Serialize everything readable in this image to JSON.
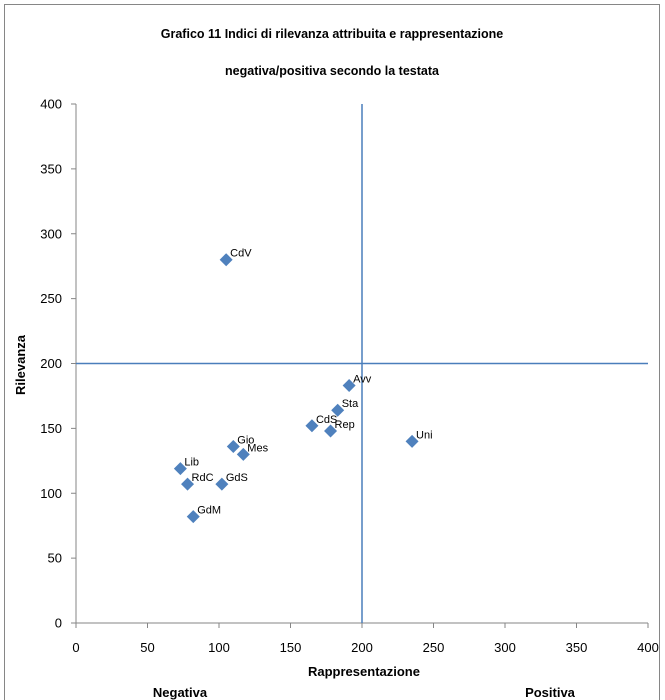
{
  "chart_data": {
    "type": "scatter",
    "title_lines": [
      "Grafico 11 Indici di rilevanza attribuita e rappresentazione",
      "negativa/positiva secondo la testata"
    ],
    "xlabel": "Rappresentazione",
    "ylabel": "Rilevanza",
    "xlim": [
      0,
      400
    ],
    "ylim": [
      0,
      400
    ],
    "xticks": [
      0,
      50,
      100,
      150,
      200,
      250,
      300,
      350,
      400
    ],
    "yticks": [
      0,
      50,
      100,
      150,
      200,
      250,
      300,
      350,
      400
    ],
    "grid": false,
    "marker": "diamond",
    "reference_lines": {
      "x": 200,
      "y": 200
    },
    "region_labels": {
      "left": "Negativa",
      "right": "Positiva"
    },
    "points": [
      {
        "label": "CdV",
        "x": 105,
        "y": 280
      },
      {
        "label": "Avv",
        "x": 191,
        "y": 183
      },
      {
        "label": "Sta",
        "x": 183,
        "y": 164
      },
      {
        "label": "CdS",
        "x": 165,
        "y": 152
      },
      {
        "label": "Rep",
        "x": 178,
        "y": 148
      },
      {
        "label": "Uni",
        "x": 235,
        "y": 140
      },
      {
        "label": "Gio",
        "x": 110,
        "y": 136
      },
      {
        "label": "Mes",
        "x": 117,
        "y": 130
      },
      {
        "label": "Lib",
        "x": 73,
        "y": 119
      },
      {
        "label": "RdC",
        "x": 78,
        "y": 107
      },
      {
        "label": "GdS",
        "x": 102,
        "y": 107
      },
      {
        "label": "GdM",
        "x": 82,
        "y": 82
      }
    ],
    "colors": {
      "marker": "#4f81bd",
      "reference_line": "#4a7ebb",
      "axis": "#868686",
      "border": "#868686"
    }
  }
}
